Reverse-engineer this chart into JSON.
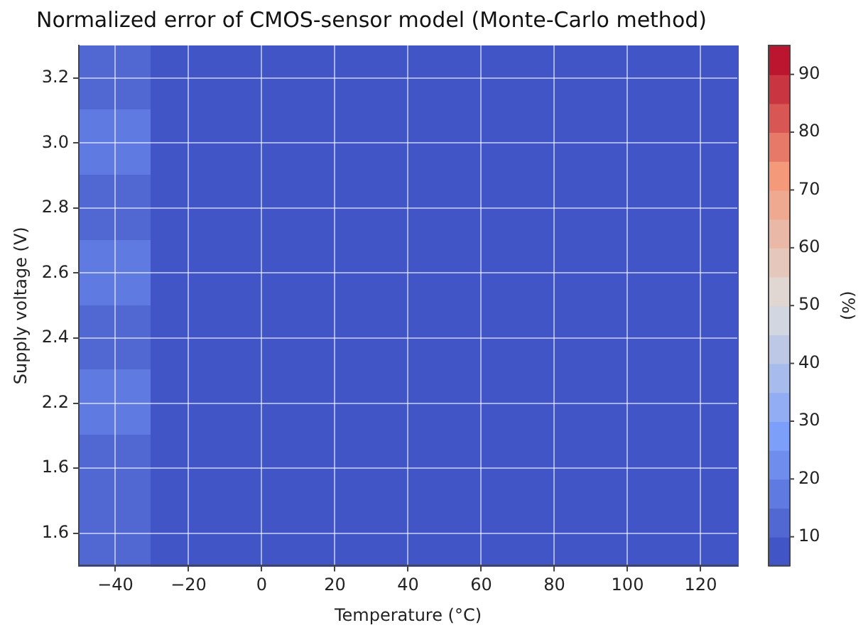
{
  "chart_data": {
    "type": "heatmap",
    "title": "Normalized error of CMOS-sensor model (Monte-Carlo method)",
    "xlabel": "Temperature (°C)",
    "ylabel": "Supply voltage (V)",
    "clabel": "(%)",
    "categories": [
      "−40",
      "−20",
      "0",
      "20",
      "40",
      "60",
      "80",
      "100",
      "120"
    ],
    "y_categories": [
      "3.2",
      "3.0",
      "2.8",
      "2.6",
      "2.4",
      "2.2",
      "1.6",
      "1.6"
    ],
    "cells": [
      [
        12,
        7,
        7,
        7,
        7,
        7,
        7,
        7,
        7
      ],
      [
        17,
        7,
        7,
        7,
        7,
        7,
        7,
        7,
        7
      ],
      [
        12,
        7,
        7,
        7,
        7,
        7,
        7,
        7,
        7
      ],
      [
        17,
        7,
        7,
        7,
        7,
        7,
        7,
        7,
        7
      ],
      [
        12,
        7,
        7,
        7,
        7,
        7,
        7,
        7,
        7
      ],
      [
        17,
        7,
        7,
        7,
        7,
        7,
        7,
        7,
        7
      ],
      [
        12,
        7,
        7,
        7,
        7,
        7,
        7,
        7,
        7
      ],
      [
        12,
        7,
        7,
        7,
        7,
        7,
        7,
        7,
        7
      ]
    ],
    "clim": [
      5,
      95
    ],
    "cticks": [
      10,
      20,
      30,
      40,
      50,
      60,
      70,
      80,
      90
    ],
    "grid": true
  }
}
